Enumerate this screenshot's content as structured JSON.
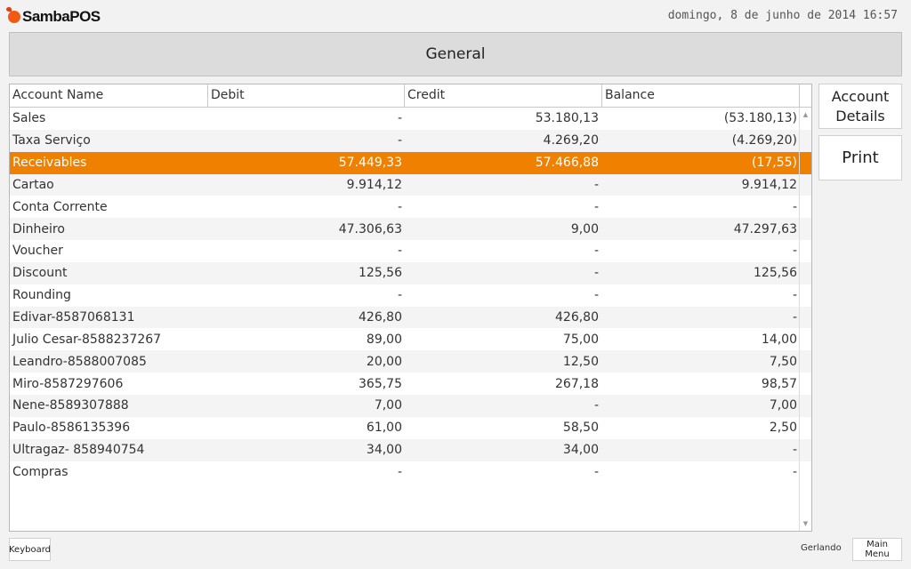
{
  "app": {
    "logo": "SambaPOS",
    "datetime": "domingo, 8 de junho de 2014 16:57"
  },
  "header": {
    "title": "General"
  },
  "table": {
    "columns": [
      "Account Name",
      "Debit",
      "Credit",
      "Balance"
    ],
    "rows": [
      [
        "Sales",
        "-",
        "53.180,13",
        "(53.180,13)"
      ],
      [
        "Taxa Serviço",
        "-",
        "4.269,20",
        "(4.269,20)"
      ],
      [
        "Receivables",
        "57.449,33",
        "57.466,88",
        "(17,55)"
      ],
      [
        "Cartao",
        "9.914,12",
        "-",
        "9.914,12"
      ],
      [
        "Conta Corrente",
        "-",
        "-",
        "-"
      ],
      [
        "Dinheiro",
        "47.306,63",
        "9,00",
        "47.297,63"
      ],
      [
        "Voucher",
        "-",
        "-",
        "-"
      ],
      [
        "Discount",
        "125,56",
        "-",
        "125,56"
      ],
      [
        "Rounding",
        "-",
        "-",
        "-"
      ],
      [
        "Edivar-8587068131",
        "426,80",
        "426,80",
        "-"
      ],
      [
        "Julio Cesar-8588237267",
        "89,00",
        "75,00",
        "14,00"
      ],
      [
        "Leandro-8588007085",
        "20,00",
        "12,50",
        "7,50"
      ],
      [
        "Miro-8587297606",
        "365,75",
        "267,18",
        "98,57"
      ],
      [
        "Nene-8589307888",
        "7,00",
        "-",
        "7,00"
      ],
      [
        "Paulo-8586135396",
        "61,00",
        "58,50",
        "2,50"
      ],
      [
        "Ultragaz- 858940754",
        "34,00",
        "34,00",
        "-"
      ],
      [
        "Compras",
        "-",
        "-",
        "-"
      ]
    ],
    "selected_row": 2,
    "selected_color": "#f08000"
  },
  "actions": {
    "account_details": "Account Details",
    "print": "Print"
  },
  "footer": {
    "keyboard": "Keyboard",
    "user": "Gerlando",
    "main_menu": "Main Menu"
  }
}
